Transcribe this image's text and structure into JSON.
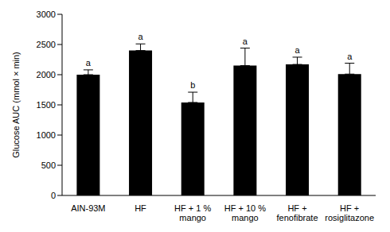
{
  "chart_data": {
    "type": "bar",
    "y_label": "Glucose AUC (mmol × min)",
    "categories": [
      "AIN-93M",
      "HF",
      "HF + 1 % mango",
      "HF + 10 % mango",
      "HF + fenofibrate",
      "HF + rosiglitazone"
    ],
    "values": [
      2000,
      2400,
      1540,
      2150,
      2170,
      2010
    ],
    "errors": [
      80,
      110,
      170,
      290,
      120,
      180
    ],
    "annotations": [
      "a",
      "a",
      "b",
      "a",
      "a",
      "a"
    ],
    "color": "#000000",
    "ylim": [
      0,
      3000
    ],
    "yticks": [
      0,
      500,
      1000,
      1500,
      2000,
      2500,
      3000
    ],
    "grid": false
  }
}
